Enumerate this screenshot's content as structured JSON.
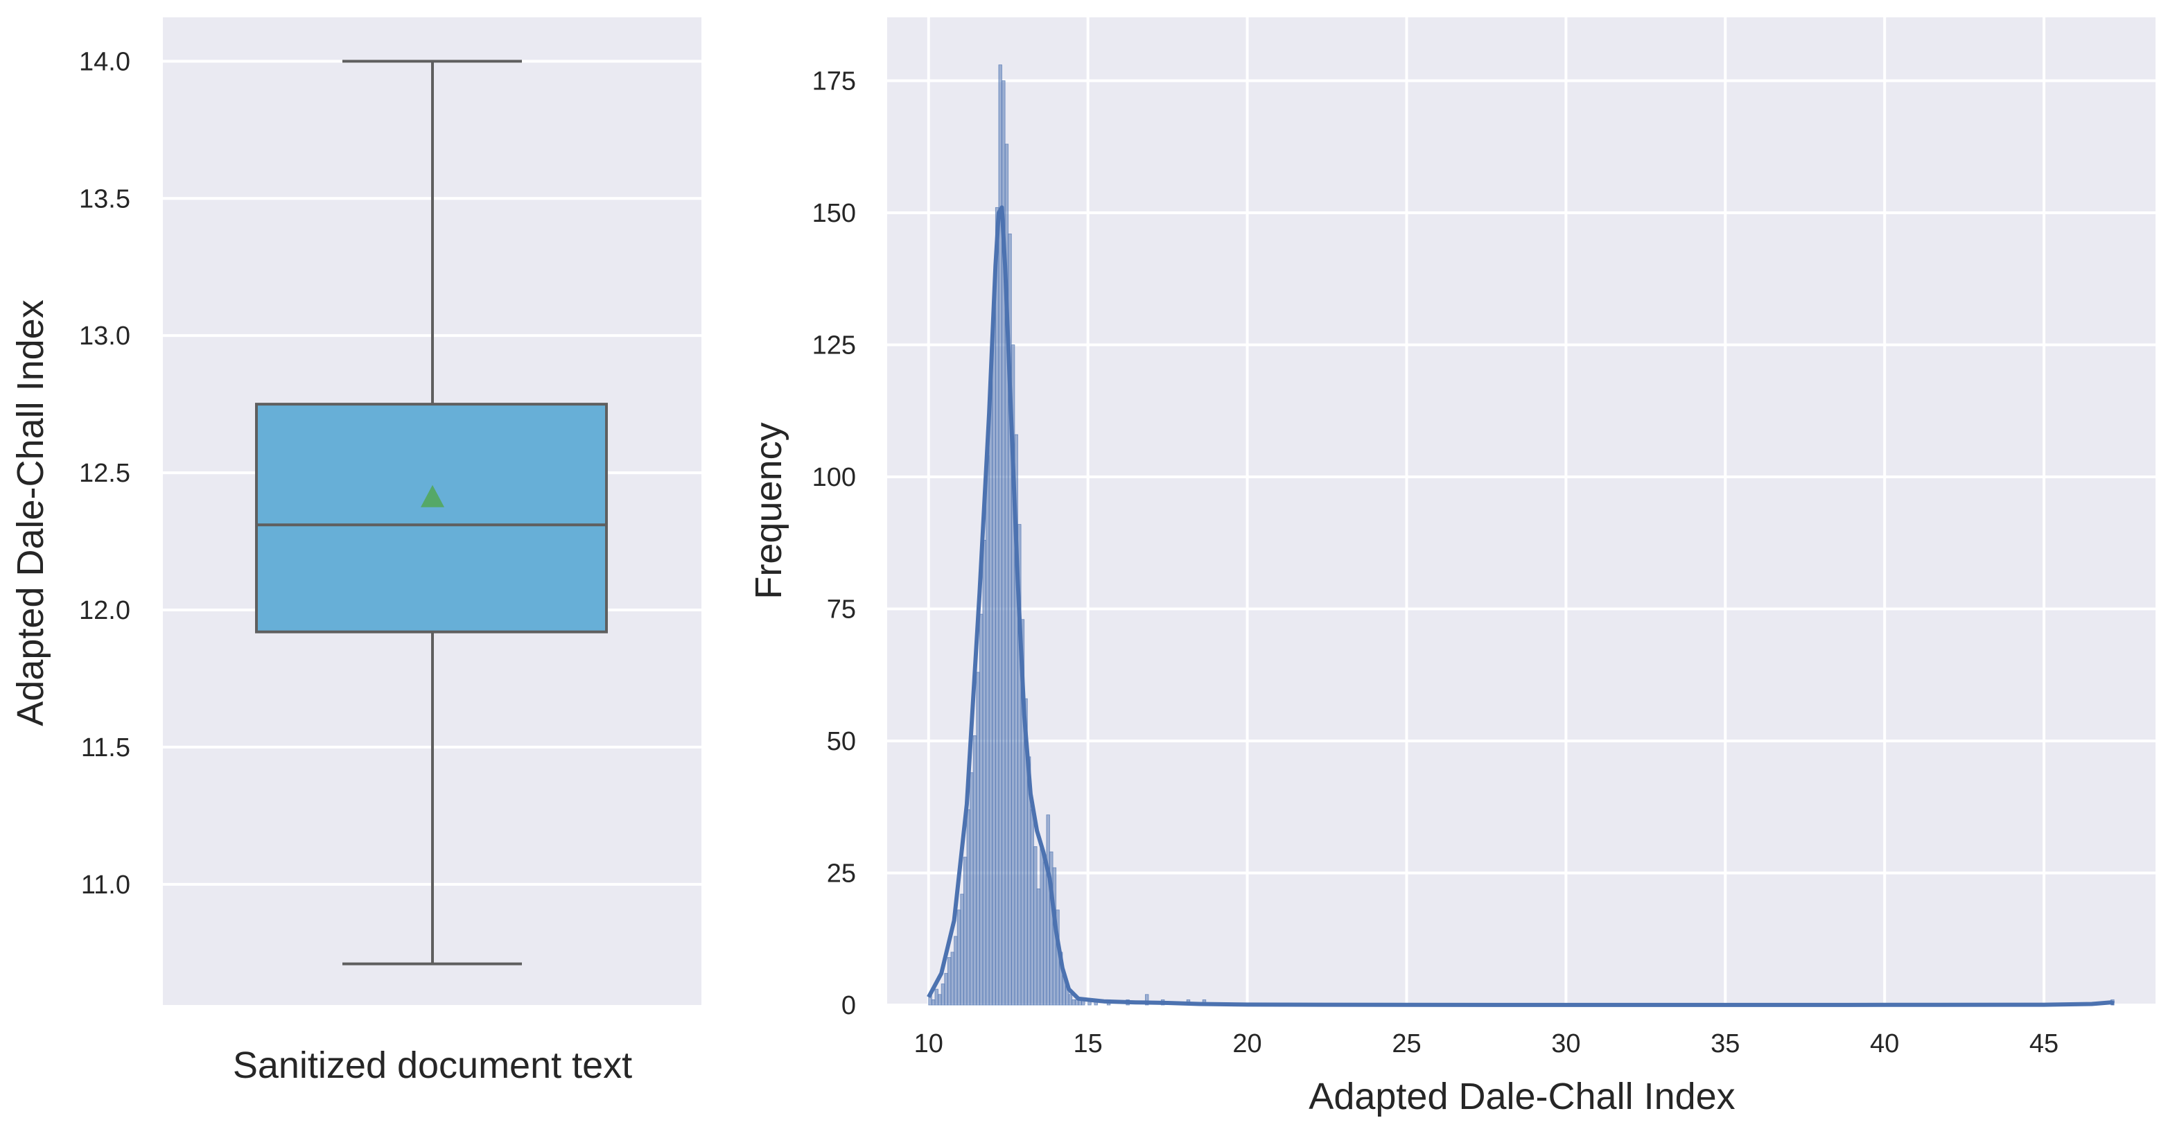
{
  "chart_data": [
    {
      "type": "box",
      "category": "Sanitized document text",
      "ylabel": "Adapted Dale-Chall Index",
      "ylim": [
        10.56,
        14.16
      ],
      "yticks": [
        "11.0",
        "11.5",
        "12.0",
        "12.5",
        "13.0",
        "13.5",
        "14.0"
      ],
      "whisker_low": 10.71,
      "q1": 11.92,
      "median": 12.31,
      "q3": 12.75,
      "whisker_high": 14.0,
      "mean": 12.41,
      "box_color": "#67afd7",
      "mean_color": "#55a868",
      "grid": true
    },
    {
      "type": "histogram",
      "xlabel": "Adapted Dale-Chall Index",
      "ylabel": "Frequency",
      "xlim": [
        8.7,
        48.5
      ],
      "ylim": [
        0,
        187
      ],
      "xticks": [
        "10",
        "15",
        "20",
        "25",
        "30",
        "35",
        "40",
        "45"
      ],
      "yticks": [
        "0",
        "25",
        "50",
        "75",
        "100",
        "125",
        "150",
        "175"
      ],
      "bin_width": 0.1,
      "bins": [
        [
          10.0,
          2
        ],
        [
          10.1,
          1
        ],
        [
          10.2,
          3
        ],
        [
          10.3,
          2
        ],
        [
          10.4,
          4
        ],
        [
          10.5,
          6
        ],
        [
          10.6,
          9
        ],
        [
          10.7,
          10
        ],
        [
          10.8,
          13
        ],
        [
          10.9,
          18
        ],
        [
          11.0,
          21
        ],
        [
          11.1,
          28
        ],
        [
          11.2,
          37
        ],
        [
          11.3,
          44
        ],
        [
          11.4,
          51
        ],
        [
          11.5,
          63
        ],
        [
          11.6,
          74
        ],
        [
          11.7,
          88
        ],
        [
          11.8,
          104
        ],
        [
          11.9,
          118
        ],
        [
          12.0,
          132
        ],
        [
          12.1,
          151
        ],
        [
          12.2,
          178
        ],
        [
          12.3,
          175
        ],
        [
          12.4,
          163
        ],
        [
          12.5,
          146
        ],
        [
          12.6,
          125
        ],
        [
          12.7,
          108
        ],
        [
          12.8,
          91
        ],
        [
          12.9,
          73
        ],
        [
          13.0,
          58
        ],
        [
          13.1,
          47
        ],
        [
          13.2,
          37
        ],
        [
          13.3,
          30
        ],
        [
          13.4,
          22
        ],
        [
          13.5,
          30
        ],
        [
          13.6,
          27
        ],
        [
          13.7,
          36
        ],
        [
          13.8,
          29
        ],
        [
          13.9,
          26
        ],
        [
          14.0,
          18
        ],
        [
          14.1,
          10
        ],
        [
          14.2,
          6
        ],
        [
          14.3,
          4
        ],
        [
          14.4,
          2
        ],
        [
          14.5,
          1
        ],
        [
          14.6,
          1
        ],
        [
          14.7,
          1
        ],
        [
          14.8,
          1
        ],
        [
          15.0,
          1
        ],
        [
          15.2,
          1
        ],
        [
          15.6,
          1
        ],
        [
          16.2,
          1
        ],
        [
          16.8,
          2
        ],
        [
          17.3,
          1
        ],
        [
          18.1,
          1
        ],
        [
          18.6,
          1
        ],
        [
          47.1,
          1
        ]
      ],
      "kde": [
        [
          10.0,
          1.5
        ],
        [
          10.4,
          6
        ],
        [
          10.8,
          16
        ],
        [
          11.2,
          38
        ],
        [
          11.6,
          78
        ],
        [
          11.9,
          112
        ],
        [
          12.1,
          140
        ],
        [
          12.2,
          150
        ],
        [
          12.3,
          151
        ],
        [
          12.4,
          140
        ],
        [
          12.6,
          110
        ],
        [
          12.8,
          80
        ],
        [
          13.0,
          55
        ],
        [
          13.2,
          40
        ],
        [
          13.4,
          33
        ],
        [
          13.6,
          29
        ],
        [
          13.8,
          24
        ],
        [
          14.0,
          14
        ],
        [
          14.2,
          7
        ],
        [
          14.4,
          3
        ],
        [
          14.7,
          1.2
        ],
        [
          15.0,
          1
        ],
        [
          15.5,
          0.7
        ],
        [
          16.5,
          0.5
        ],
        [
          17.5,
          0.4
        ],
        [
          18.5,
          0.2
        ],
        [
          20,
          0.08
        ],
        [
          25,
          0.02
        ],
        [
          30,
          0.01
        ],
        [
          35,
          0.01
        ],
        [
          40,
          0.02
        ],
        [
          45,
          0.05
        ],
        [
          46.5,
          0.2
        ],
        [
          47.1,
          0.5
        ],
        [
          47.2,
          0.3
        ]
      ],
      "bar_color": "#4c72b0",
      "line_color": "#4c72b0",
      "grid": true
    }
  ]
}
